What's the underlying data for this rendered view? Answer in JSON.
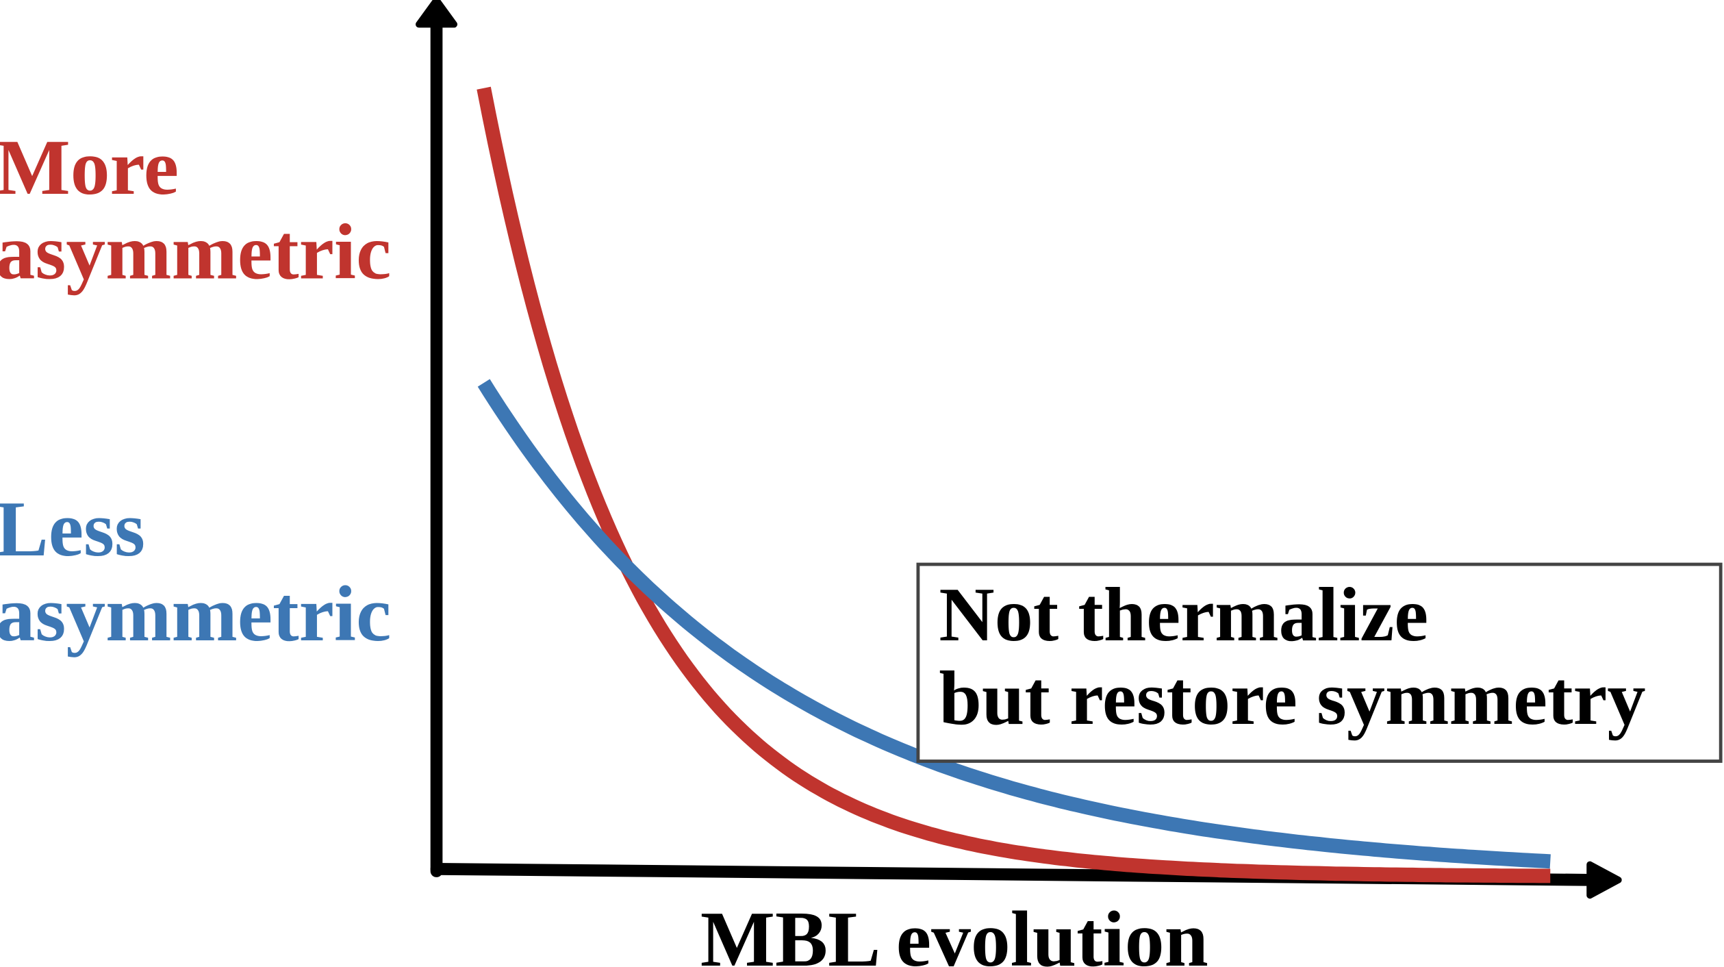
{
  "labels": {
    "more_line1": "More",
    "more_line2": "asymmetric",
    "less_line1": "Less",
    "less_line2": "asymmetric",
    "box_line1": "Not thermalize",
    "box_line2": "but restore symmetry",
    "x_axis": "MBL evolution"
  },
  "colors": {
    "more": "#c0342e",
    "less": "#3d77b4",
    "axis": "#000000",
    "box_border": "#444444"
  },
  "series": [
    {
      "name": "More asymmetric",
      "color_key": "more",
      "shape": "fast exponential decay"
    },
    {
      "name": "Less asymmetric",
      "color_key": "less",
      "shape": "slow exponential decay"
    }
  ]
}
